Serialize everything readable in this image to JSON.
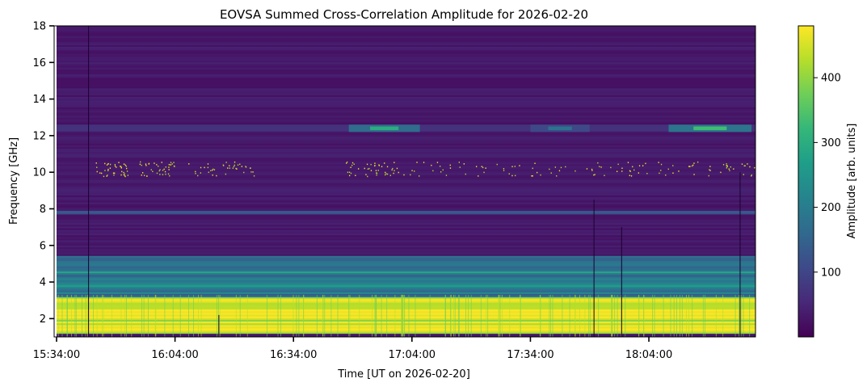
{
  "chart_data": {
    "type": "heatmap",
    "title": "EOVSA Summed Cross-Correlation Amplitude for 2026-02-20",
    "xlabel": "Time [UT on 2026-02-20]",
    "ylabel": "Frequency [GHz]",
    "x_time_range_minutes": [
      0,
      177
    ],
    "x_start_label": "15:34",
    "x_ticks": [
      {
        "minute": 0,
        "label": "15:34:00"
      },
      {
        "minute": 30,
        "label": "16:04:00"
      },
      {
        "minute": 60,
        "label": "16:34:00"
      },
      {
        "minute": 90,
        "label": "17:04:00"
      },
      {
        "minute": 120,
        "label": "17:34:00"
      },
      {
        "minute": 150,
        "label": "18:04:00"
      }
    ],
    "ylim": [
      1,
      18
    ],
    "y_ticks": [
      2,
      4,
      6,
      8,
      10,
      12,
      14,
      16,
      18
    ],
    "colorbar": {
      "label": "Amplitude [arb. units]",
      "range": [
        0,
        480
      ],
      "ticks": [
        100,
        200,
        300,
        400
      ],
      "colormap": "viridis",
      "colors": [
        "#440154",
        "#482878",
        "#3e4989",
        "#31688e",
        "#26828e",
        "#1f9e89",
        "#35b779",
        "#6ece58",
        "#b5de2b",
        "#fde725"
      ]
    },
    "features": [
      {
        "name": "low-frequency continuum",
        "freq_ghz": [
          1.2,
          3.2
        ],
        "amplitude": 470
      },
      {
        "name": "3-4 GHz band",
        "freq_ghz": [
          3.2,
          4.6
        ],
        "amplitude": 280
      },
      {
        "name": "5 GHz band",
        "freq_ghz": [
          4.6,
          5.4
        ],
        "amplitude": 180
      },
      {
        "name": "7.8 GHz line",
        "freq_ghz": [
          7.7,
          7.9
        ],
        "amplitude": 140
      },
      {
        "name": "12.4 GHz bursts",
        "freq_ghz": [
          12.2,
          12.6
        ],
        "amplitude": 250
      }
    ]
  }
}
